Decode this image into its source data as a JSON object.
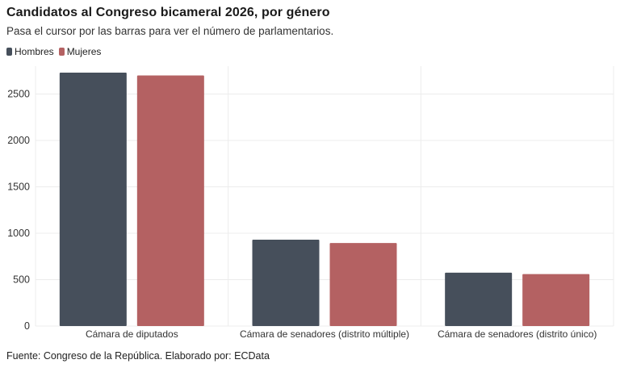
{
  "header": {
    "title": "Candidatos al Congreso bicameral 2026, por género",
    "subtitle": "Pasa el cursor por las barras para ver el número de parlamentarios."
  },
  "footer": {
    "source": "Fuente: Congreso de la República. Elaborado por: ECData"
  },
  "colors": {
    "hombres": "#464f5b",
    "mujeres": "#b46162",
    "grid": "#ececec"
  },
  "chart_data": {
    "type": "bar",
    "title": "Candidatos al Congreso bicameral 2026, por género",
    "subtitle": "Pasa el cursor por las barras para ver el número de parlamentarios.",
    "categories": [
      "Cámara de diputados",
      "Cámara de senadores (distrito múltiple)",
      "Cámara de senadores (distrito único)"
    ],
    "series": [
      {
        "name": "Hombres",
        "values": [
          2730,
          930,
          575
        ]
      },
      {
        "name": "Mujeres",
        "values": [
          2700,
          895,
          560
        ]
      }
    ],
    "yticks": [
      0,
      500,
      1000,
      1500,
      2000,
      2500
    ],
    "ylim": [
      0,
      2800
    ],
    "grid": true,
    "legend": "top-left"
  }
}
